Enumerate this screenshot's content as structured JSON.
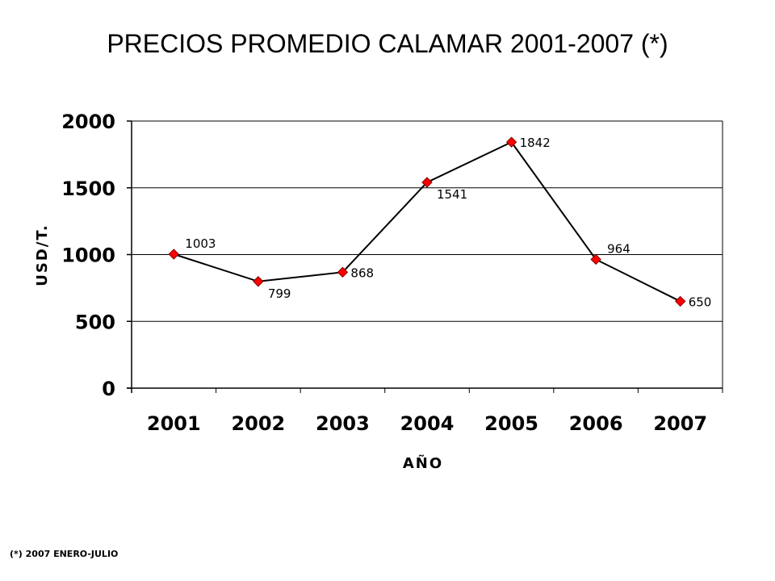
{
  "chart_data": {
    "type": "line",
    "title": "PRECIOS PROMEDIO CALAMAR 2001-2007 (*)",
    "xlabel": "AÑO",
    "ylabel": "USD/T.",
    "categories": [
      "2001",
      "2002",
      "2003",
      "2004",
      "2005",
      "2006",
      "2007"
    ],
    "series": [
      {
        "values": [
          1003,
          799,
          868,
          1541,
          1842,
          964,
          650
        ]
      }
    ],
    "ylim": [
      0,
      2000
    ],
    "yticks": [
      0,
      500,
      1000,
      1500,
      2000
    ],
    "grid": true,
    "legend": "none",
    "marker": "diamond",
    "colors": {
      "line": "#000000",
      "marker": "#ff0000",
      "grid": "#000000"
    },
    "data_label_placement": [
      "above",
      "below",
      "right",
      "below",
      "right",
      "above",
      "right"
    ]
  },
  "footnote": "(*) 2007 ENERO-JULIO"
}
